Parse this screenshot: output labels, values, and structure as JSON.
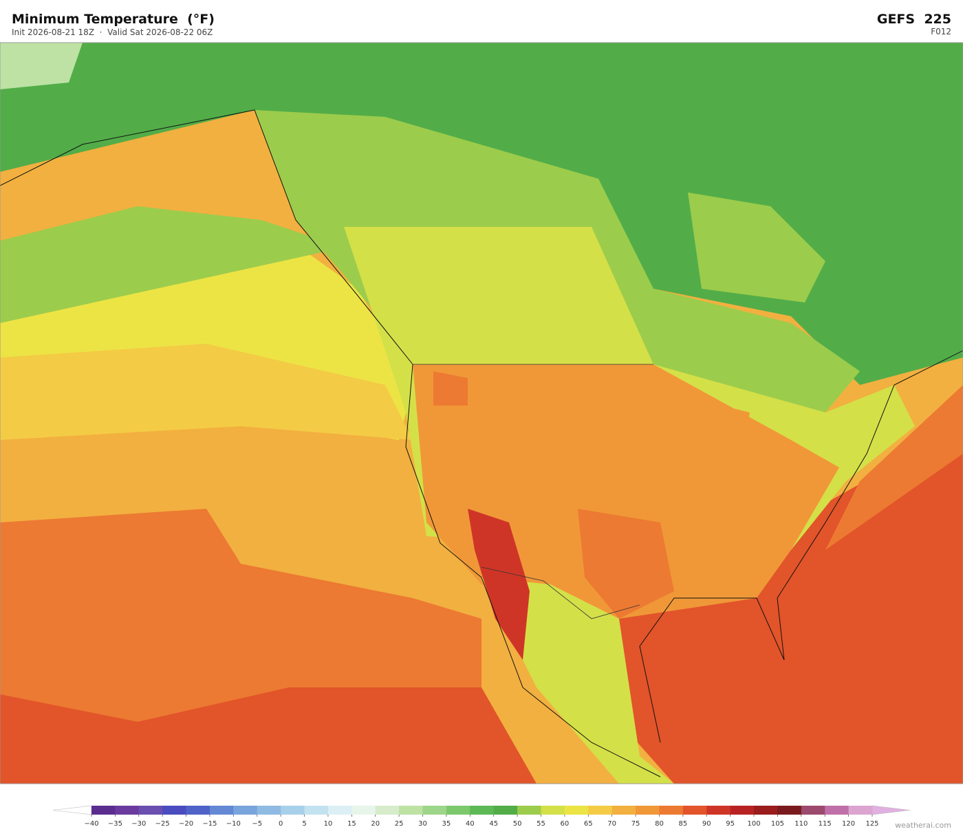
{
  "header": {
    "title": "Minimum Temperature  (°F)",
    "subtitle": "Init 2026-08-21 18Z  ·  Valid Sat 2026-08-22 06Z",
    "model": "GEFS  225",
    "forecast": "F012"
  },
  "colorbar": {
    "ticks": [
      {
        "value": -40,
        "label": "−40"
      },
      {
        "value": -35,
        "label": "−35"
      },
      {
        "value": -30,
        "label": "−30"
      },
      {
        "value": -25,
        "label": "−25"
      },
      {
        "value": -20,
        "label": "−20"
      },
      {
        "value": -15,
        "label": "−15"
      },
      {
        "value": -10,
        "label": "−10"
      },
      {
        "value": -5,
        "label": "−5"
      },
      0,
      5,
      10,
      15,
      20,
      25,
      30,
      35,
      40,
      45,
      50,
      55,
      60,
      65,
      70,
      75,
      80,
      85,
      90,
      95,
      100,
      105,
      110,
      115,
      120,
      125
    ],
    "colors": [
      "#5b2d8e",
      "#6a3a9e",
      "#6b4fb0",
      "#4a4cc0",
      "#4f62c8",
      "#6488d4",
      "#7aa4dc",
      "#8fbbe3",
      "#a8d0ea",
      "#c3e2f0",
      "#dceff5",
      "#e8f5ea",
      "#d6eccb",
      "#bde2a4",
      "#9dd68a",
      "#7cc86c",
      "#5cb955",
      "#52ad48",
      "#9ccc4c",
      "#d4e048",
      "#ece445",
      "#f4cb45",
      "#f2b040",
      "#f09838",
      "#ec7a32",
      "#e2542a",
      "#cf3526",
      "#b82222",
      "#9a1c1c",
      "#7b1a1e",
      "#9c4a6e",
      "#c070a8",
      "#dca4d0"
    ],
    "under_color": "#ffffff",
    "over_color": "#e0b0e0"
  },
  "footer": {
    "credit": "weatherai.com"
  }
}
